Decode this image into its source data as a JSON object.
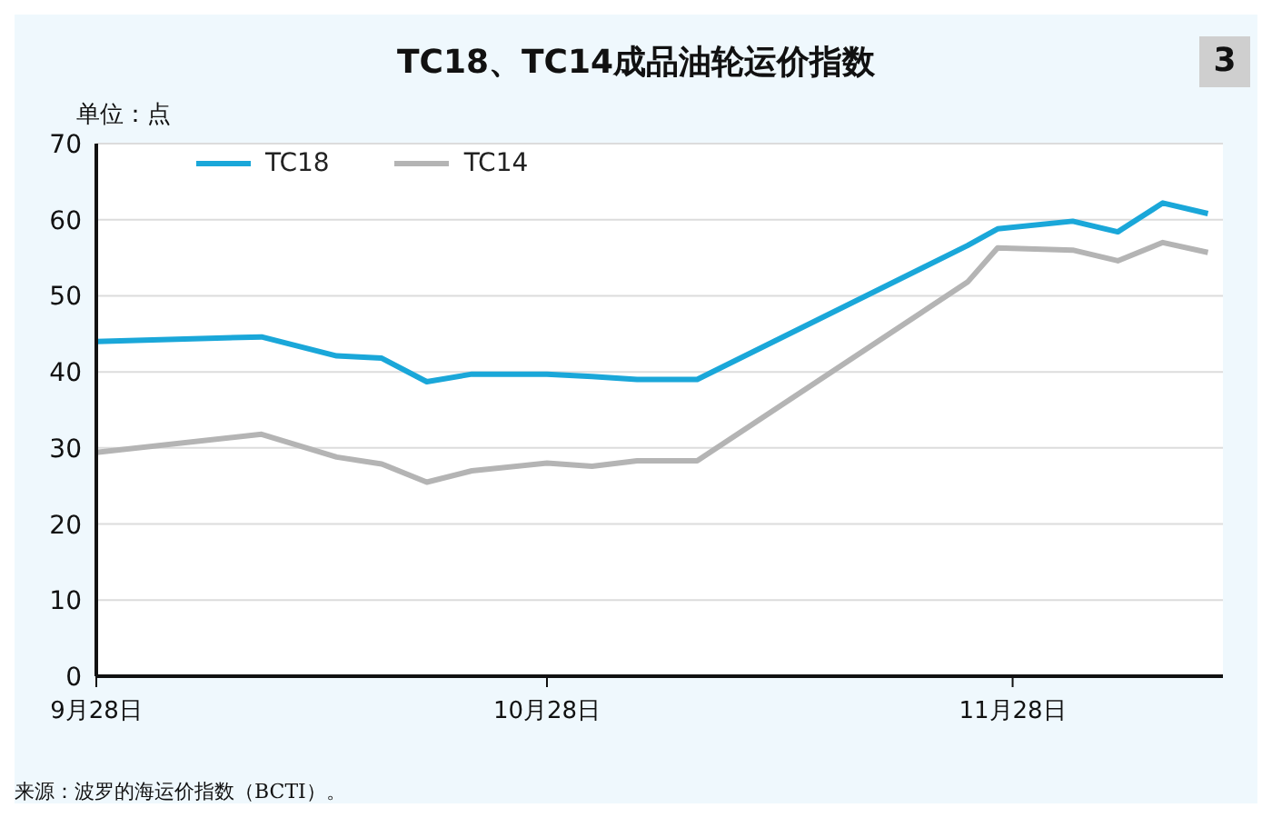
{
  "chart_data": {
    "type": "line",
    "title": "TC18、TC14成品油轮运价指数",
    "ylabel": "单位：点",
    "annotations": [
      "来源：波罗的海运价指数（BCTI）。",
      "3"
    ],
    "x": [
      "--09-28",
      "--10-09",
      "--10-14",
      "--10-17",
      "--10-20",
      "--10-23",
      "--10-28",
      "--10-31",
      "--11-03",
      "--11-07",
      "--11-25",
      "--11-27",
      "--12-02",
      "--12-05",
      "--12-08",
      "--12-11"
    ],
    "series": [
      {
        "name": "TC18",
        "color": "#1aa7d9",
        "values": [
          44.0,
          44.6,
          42.1,
          41.8,
          38.7,
          39.7,
          39.7,
          39.4,
          39.0,
          39.0,
          56.6,
          58.8,
          59.8,
          58.4,
          62.2,
          60.8
        ]
      },
      {
        "name": "TC14",
        "color": "#b4b4b4",
        "values": [
          29.4,
          31.8,
          28.8,
          27.9,
          25.5,
          27.0,
          28.0,
          27.6,
          28.3,
          28.3,
          51.8,
          56.3,
          56.0,
          54.6,
          57.0,
          55.7
        ]
      }
    ],
    "xlim": [
      "--09-28",
      "--12-12"
    ],
    "xticks": [
      {
        "value": "--09-28",
        "label": "9月28日"
      },
      {
        "value": "--10-28",
        "label": "10月28日"
      },
      {
        "value": "--11-28",
        "label": "11月28日"
      }
    ],
    "ylim": [
      0,
      70
    ],
    "yticks": [
      0,
      10,
      20,
      30,
      40,
      50,
      60,
      70
    ],
    "grid": "y",
    "legend": "top left",
    "marker": "none",
    "line_style": "solid"
  }
}
